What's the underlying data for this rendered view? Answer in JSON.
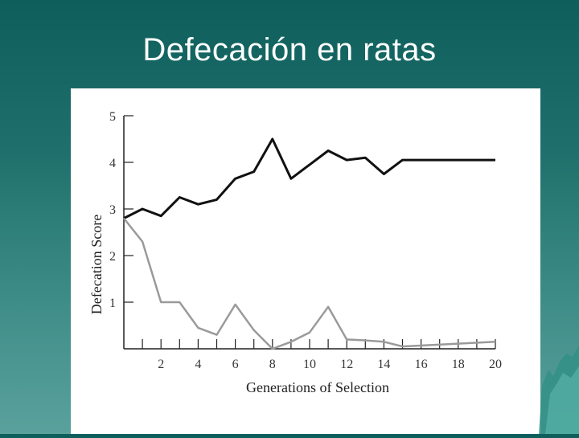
{
  "slide": {
    "title": "Defecación en ratas"
  },
  "colors": {
    "background_top": "#0e5f5c",
    "background_bottom": "#5aa19c",
    "panel": "#ffffff",
    "title": "#ffffff"
  },
  "chart_data": {
    "type": "line",
    "title": "",
    "xlabel": "Generations of Selection",
    "ylabel": "Defecation Score",
    "xlim": [
      0,
      20
    ],
    "ylim": [
      0,
      5
    ],
    "x_ticks": [
      2,
      4,
      6,
      8,
      10,
      12,
      14,
      16,
      18,
      20
    ],
    "x_tick_labels": [
      "2",
      "4",
      "6",
      "8",
      "10",
      "12",
      "14",
      "16",
      "18",
      "20"
    ],
    "y_ticks": [
      1,
      2,
      3,
      4,
      5
    ],
    "y_tick_labels": [
      "1",
      "2",
      "3",
      "4",
      "5"
    ],
    "grid": false,
    "legend": "none",
    "series": [
      {
        "color": "#111111",
        "x": [
          0,
          1,
          2,
          3,
          4,
          5,
          6,
          7,
          8,
          9,
          10,
          11,
          12,
          13,
          14,
          15,
          20
        ],
        "values": [
          2.8,
          3.0,
          2.85,
          3.25,
          3.1,
          3.2,
          3.65,
          3.8,
          4.5,
          3.65,
          3.95,
          4.25,
          4.05,
          4.1,
          3.75,
          4.05,
          4.05
        ]
      },
      {
        "color": "#9a9a9a",
        "x": [
          0,
          1,
          2,
          3,
          4,
          5,
          6,
          7,
          8,
          9,
          10,
          11,
          12,
          13,
          14,
          15,
          20
        ],
        "values": [
          2.8,
          2.3,
          1.0,
          1.0,
          0.45,
          0.3,
          0.95,
          0.4,
          0.0,
          0.15,
          0.35,
          0.9,
          0.2,
          0.18,
          0.15,
          0.05,
          0.15
        ]
      }
    ]
  }
}
